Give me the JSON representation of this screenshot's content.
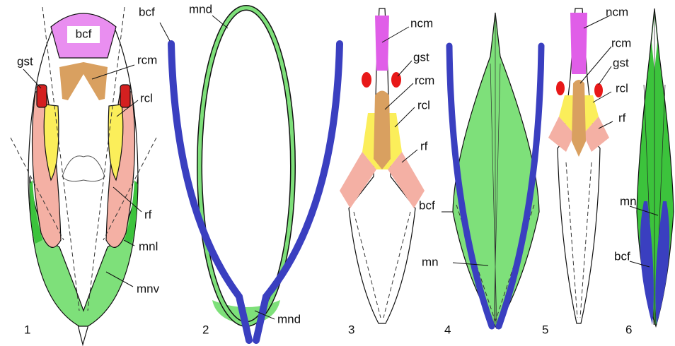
{
  "panels": [
    {
      "number": "1",
      "labels": [
        "bcf",
        "gst",
        "rcm",
        "rcl",
        "rf",
        "mnl",
        "mnv"
      ]
    },
    {
      "number": "2",
      "labels": [
        "bcf",
        "mnd",
        "mnd"
      ]
    },
    {
      "number": "3",
      "labels": [
        "ncm",
        "gst",
        "rcm",
        "rcl",
        "rf"
      ]
    },
    {
      "number": "4",
      "labels": [
        "bcf",
        "mn"
      ]
    },
    {
      "number": "5",
      "labels": [
        "ncm",
        "rcm",
        "gst",
        "rcl",
        "rf"
      ]
    },
    {
      "number": "6",
      "labels": [
        "mn",
        "bcf"
      ]
    }
  ]
}
